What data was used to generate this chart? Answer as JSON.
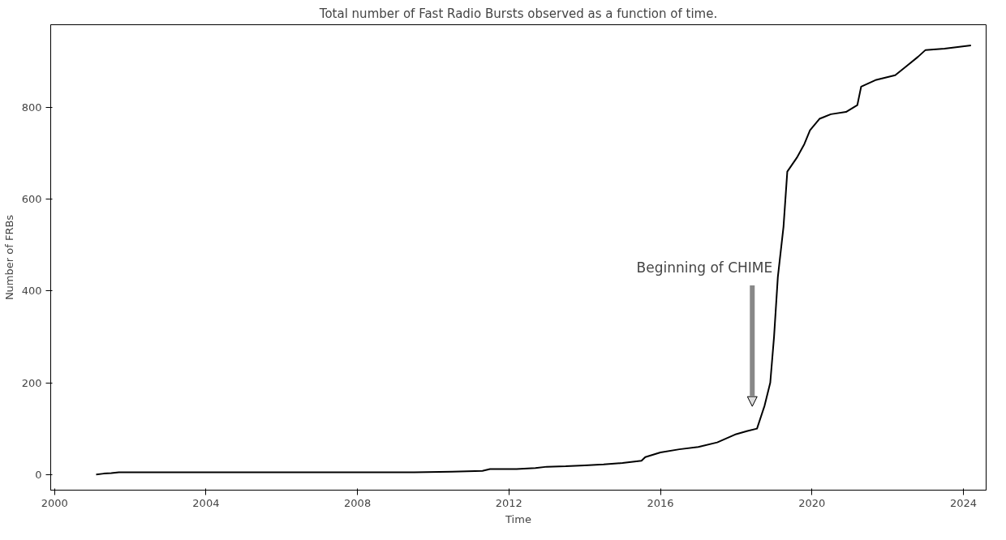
{
  "chart_data": {
    "type": "line",
    "title": "Total number of Fast Radio Bursts observed as a function of time.",
    "xlabel": "Time",
    "ylabel": "Number of FRBs",
    "series": [
      {
        "color": "#000000",
        "x": [
          2001.1,
          2001.3,
          2001.5,
          2001.7,
          2003,
          2005,
          2007,
          2009.5,
          2010.5,
          2011.3,
          2011.5,
          2012.2,
          2012.7,
          2013,
          2013.5,
          2014,
          2014.5,
          2015,
          2015.5,
          2015.6,
          2016,
          2016.5,
          2017,
          2017.5,
          2018,
          2018.3,
          2018.55,
          2018.75,
          2018.9,
          2019.0,
          2019.1,
          2019.25,
          2019.35,
          2019.6,
          2019.8,
          2019.95,
          2020.2,
          2020.5,
          2020.9,
          2021.2,
          2021.3,
          2021.7,
          2022.2,
          2022.5,
          2022.8,
          2023.0,
          2023.5,
          2024.2
        ],
        "values": [
          0,
          2,
          3,
          5,
          5,
          5,
          5,
          5,
          6,
          8,
          12,
          12,
          14,
          17,
          18,
          20,
          22,
          25,
          30,
          38,
          48,
          55,
          60,
          70,
          88,
          95,
          100,
          150,
          200,
          300,
          430,
          540,
          660,
          690,
          720,
          750,
          775,
          785,
          790,
          805,
          845,
          860,
          870,
          890,
          910,
          925,
          928,
          935
        ]
      }
    ],
    "annotations": [
      "Beginning of CHIME"
    ],
    "xlim": [
      1999.9,
      2024.6
    ],
    "ylim": [
      -34,
      980
    ],
    "xticks": [
      2000,
      2004,
      2008,
      2012,
      2016,
      2020,
      2024
    ],
    "yticks": [
      0,
      200,
      400,
      600,
      800
    ],
    "grid": false,
    "line_style": "solid",
    "marker": "none"
  }
}
